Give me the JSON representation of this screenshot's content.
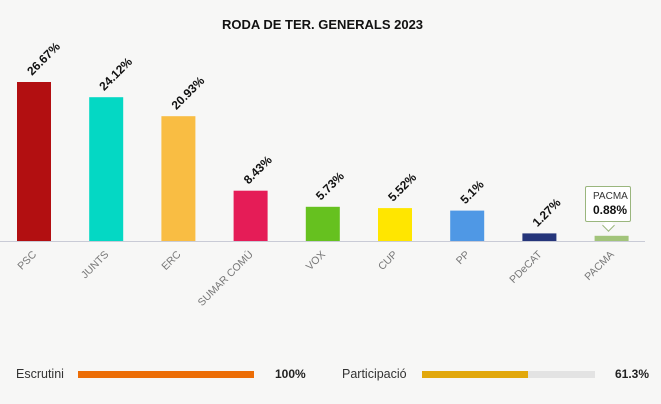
{
  "chart_data": {
    "type": "bar",
    "title": "RODA DE TER. GENERALS 2023",
    "categories": [
      "PSC",
      "JUNTS",
      "ERC",
      "SUMAR COMÚ",
      "VOX",
      "CUP",
      "PP",
      "PDeCAT",
      "PACMA"
    ],
    "values": [
      26.67,
      24.12,
      20.93,
      8.43,
      5.73,
      5.52,
      5.1,
      1.27,
      0.88
    ],
    "value_labels": [
      "26.67%",
      "24.12%",
      "20.93%",
      "8.43%",
      "5.73%",
      "5.52%",
      "5.1%",
      "1.27%",
      "0.88%"
    ],
    "colors": [
      "#b20f11",
      "#04d8c4",
      "#f9bd43",
      "#e51c57",
      "#66c11f",
      "#ffe600",
      "#4f98e5",
      "#25357a",
      "#a2c47a"
    ],
    "ylim": [
      0,
      26.67
    ],
    "grid": false,
    "tooltip": {
      "name": "PACMA",
      "value": "0.88%"
    }
  },
  "footer": {
    "escrutini": {
      "label": "Escrutini",
      "value": "100%",
      "fraction": 1.0,
      "color": "#ec6d06"
    },
    "participacio": {
      "label": "Participació",
      "value": "61.3%",
      "fraction": 0.613,
      "color": "#e2a80c"
    }
  }
}
